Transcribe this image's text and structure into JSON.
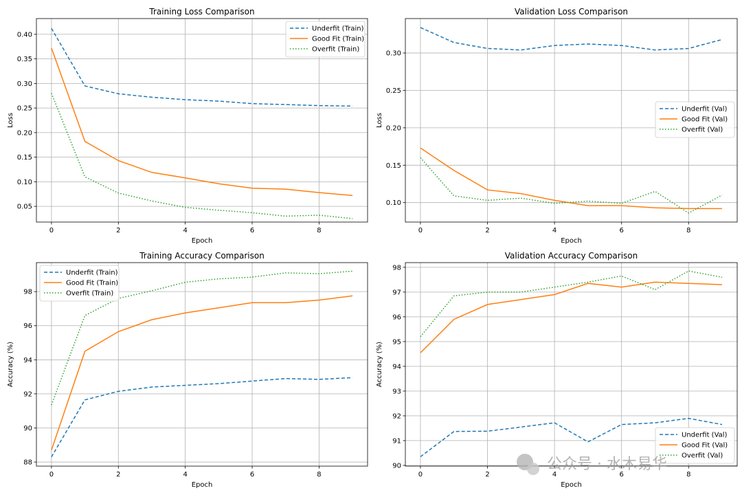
{
  "watermark": "公众号 · 水木易华",
  "chart_data": [
    {
      "type": "line",
      "title": "Training Loss Comparison",
      "xlabel": "Epoch",
      "ylabel": "Loss",
      "x": [
        0,
        1,
        2,
        3,
        4,
        5,
        6,
        7,
        8,
        9
      ],
      "xlim": [
        -0.45,
        9.45
      ],
      "ylim": [
        0.018,
        0.432
      ],
      "xticks": [
        0,
        2,
        4,
        6,
        8
      ],
      "yticks": [
        0.05,
        0.1,
        0.15,
        0.2,
        0.25,
        0.3,
        0.35,
        0.4
      ],
      "ytick_decimals": 2,
      "grid": true,
      "legend": "top-right",
      "series": [
        {
          "name": "Underfit (Train)",
          "color": "#1f77b4",
          "style": "dashed",
          "values": [
            0.412,
            0.295,
            0.279,
            0.272,
            0.267,
            0.264,
            0.259,
            0.257,
            0.255,
            0.254
          ]
        },
        {
          "name": "Good Fit (Train)",
          "color": "#ff7f0e",
          "style": "solid",
          "values": [
            0.372,
            0.182,
            0.143,
            0.119,
            0.108,
            0.096,
            0.087,
            0.085,
            0.078,
            0.072
          ]
        },
        {
          "name": "Overfit (Train)",
          "color": "#2ca02c",
          "style": "dotted",
          "values": [
            0.28,
            0.11,
            0.077,
            0.061,
            0.048,
            0.042,
            0.037,
            0.03,
            0.032,
            0.025
          ]
        }
      ]
    },
    {
      "type": "line",
      "title": "Validation Loss Comparison",
      "xlabel": "Epoch",
      "ylabel": "Loss",
      "x": [
        0,
        1,
        2,
        3,
        4,
        5,
        6,
        7,
        8,
        9
      ],
      "xlim": [
        -0.45,
        9.45
      ],
      "ylim": [
        0.074,
        0.346
      ],
      "xticks": [
        0,
        2,
        4,
        6,
        8
      ],
      "yticks": [
        0.1,
        0.15,
        0.2,
        0.25,
        0.3
      ],
      "ytick_decimals": 2,
      "grid": true,
      "legend": "center-right",
      "series": [
        {
          "name": "Underfit (Val)",
          "color": "#1f77b4",
          "style": "dashed",
          "values": [
            0.334,
            0.314,
            0.306,
            0.304,
            0.31,
            0.312,
            0.31,
            0.304,
            0.306,
            0.318
          ]
        },
        {
          "name": "Good Fit (Val)",
          "color": "#ff7f0e",
          "style": "solid",
          "values": [
            0.173,
            0.143,
            0.117,
            0.112,
            0.103,
            0.096,
            0.096,
            0.093,
            0.092,
            0.092
          ]
        },
        {
          "name": "Overfit (Val)",
          "color": "#2ca02c",
          "style": "dotted",
          "values": [
            0.16,
            0.109,
            0.103,
            0.106,
            0.099,
            0.102,
            0.099,
            0.115,
            0.086,
            0.11
          ]
        }
      ]
    },
    {
      "type": "line",
      "title": "Training Accuracy Comparison",
      "xlabel": "Epoch",
      "ylabel": "Accuracy (%)",
      "x": [
        0,
        1,
        2,
        3,
        4,
        5,
        6,
        7,
        8,
        9
      ],
      "xlim": [
        -0.45,
        9.45
      ],
      "ylim": [
        87.76,
        99.7
      ],
      "xticks": [
        0,
        2,
        4,
        6,
        8
      ],
      "yticks": [
        88,
        90,
        92,
        94,
        96,
        98
      ],
      "ytick_decimals": 0,
      "grid": true,
      "legend": "top-left",
      "series": [
        {
          "name": "Underfit (Train)",
          "color": "#1f77b4",
          "style": "dashed",
          "values": [
            88.3,
            91.65,
            92.15,
            92.4,
            92.5,
            92.6,
            92.75,
            92.9,
            92.85,
            92.95
          ]
        },
        {
          "name": "Good Fit (Train)",
          "color": "#ff7f0e",
          "style": "solid",
          "values": [
            88.7,
            94.5,
            95.65,
            96.35,
            96.75,
            97.05,
            97.35,
            97.35,
            97.5,
            97.75
          ]
        },
        {
          "name": "Overfit (Train)",
          "color": "#2ca02c",
          "style": "dotted",
          "values": [
            91.35,
            96.6,
            97.6,
            98.05,
            98.55,
            98.75,
            98.85,
            99.1,
            99.05,
            99.2
          ]
        }
      ]
    },
    {
      "type": "line",
      "title": "Validation Accuracy Comparison",
      "xlabel": "Epoch",
      "ylabel": "Accuracy (%)",
      "x": [
        0,
        1,
        2,
        3,
        4,
        5,
        6,
        7,
        8,
        9
      ],
      "xlim": [
        -0.45,
        9.45
      ],
      "ylim": [
        89.97,
        98.19
      ],
      "xticks": [
        0,
        2,
        4,
        6,
        8
      ],
      "yticks": [
        90,
        91,
        92,
        93,
        94,
        95,
        96,
        97,
        98
      ],
      "ytick_decimals": 0,
      "grid": true,
      "legend": "bottom-right",
      "series": [
        {
          "name": "Underfit (Val)",
          "color": "#1f77b4",
          "style": "dashed",
          "values": [
            90.35,
            91.37,
            91.38,
            91.55,
            91.72,
            90.95,
            91.65,
            91.72,
            91.9,
            91.65
          ]
        },
        {
          "name": "Good Fit (Val)",
          "color": "#ff7f0e",
          "style": "solid",
          "values": [
            94.55,
            95.9,
            96.5,
            96.7,
            96.9,
            97.35,
            97.2,
            97.4,
            97.35,
            97.3
          ]
        },
        {
          "name": "Overfit (Val)",
          "color": "#2ca02c",
          "style": "dotted",
          "values": [
            95.2,
            96.85,
            97.0,
            97.0,
            97.2,
            97.4,
            97.65,
            97.1,
            97.85,
            97.6
          ]
        }
      ]
    }
  ]
}
